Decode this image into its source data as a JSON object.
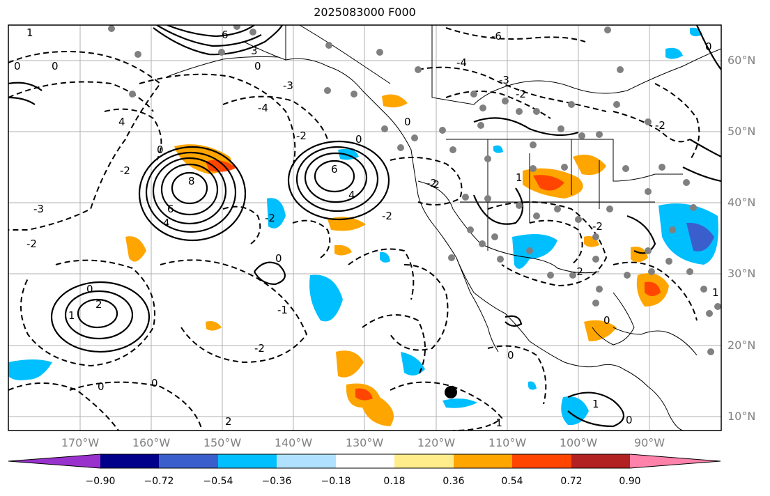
{
  "title": "2025083000 F000",
  "lon_labels": [
    "170°W",
    "160°W",
    "150°W",
    "140°W",
    "130°W",
    "120°W",
    "110°W",
    "100°W",
    "90°W"
  ],
  "lat_labels": [
    "60°N",
    "50°N",
    "40°N",
    "30°N",
    "20°N",
    "10°N"
  ],
  "colorbar": {
    "ticks": [
      "−0.90",
      "−0.72",
      "−0.54",
      "−0.36",
      "−0.18",
      "0.18",
      "0.36",
      "0.54",
      "0.72",
      "0.90"
    ],
    "colors": [
      "#9932cc",
      "#00008b",
      "#3a5fcd",
      "#00bfff",
      "#b0e2ff",
      "#ffffff",
      "#ffec8b",
      "#ffa500",
      "#ff4500",
      "#b22222",
      "#ff82ab"
    ]
  },
  "contour_labels": [
    "6",
    "3",
    "0",
    "-3",
    "-6",
    "-4",
    "-2",
    "-1",
    "1",
    "2",
    "4",
    "8"
  ],
  "markers": {
    "point_color": "#808080",
    "highlight_color": "#000000"
  }
}
